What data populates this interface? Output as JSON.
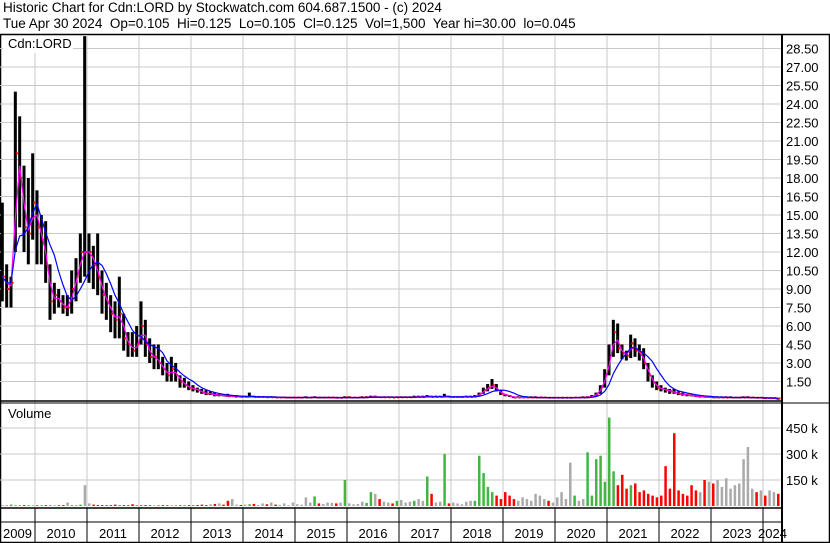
{
  "header": {
    "title": "Historic Chart for Cdn:LORD by Stockwatch.com 604.687.1500 - (c) 2024",
    "quote": "Tue Apr 30 2024  Op=0.105  Hi=0.125  Lo=0.105  Cl=0.125  Vol=1,500  Year hi=30.00  lo=0.045"
  },
  "colors": {
    "bar": "#000000",
    "close": "#ff0000",
    "ma_short": "#ff00ff",
    "ma_long": "#0000ff",
    "vol_up": "#44b444",
    "vol_down": "#ff0000",
    "vol_flat": "#aaaaaa",
    "grid": "#c8c8c8"
  },
  "chart_data": [
    {
      "type": "bar",
      "panel": "price",
      "label": "Cdn:LORD",
      "start_month": "2009-05",
      "ylim": [
        0,
        30
      ],
      "yticks": [
        "1.50",
        "3.00",
        "4.50",
        "6.00",
        "7.50",
        "9.00",
        "10.50",
        "12.00",
        "13.50",
        "15.00",
        "16.50",
        "18.00",
        "19.50",
        "21.00",
        "22.50",
        "24.00",
        "25.50",
        "27.00",
        "28.50"
      ],
      "grid": true,
      "monthly_hi_lo_close": [
        [
          16,
          8,
          10
        ],
        [
          11,
          7.5,
          9
        ],
        [
          10,
          7.5,
          9.5
        ],
        [
          25,
          12,
          20
        ],
        [
          23,
          14,
          18
        ],
        [
          19,
          12,
          14
        ],
        [
          18,
          11,
          13.5
        ],
        [
          20,
          13,
          16
        ],
        [
          17,
          11,
          14
        ],
        [
          15,
          11,
          13
        ],
        [
          14.5,
          9.5,
          11
        ],
        [
          11,
          6.5,
          8
        ],
        [
          9.5,
          7,
          8.5
        ],
        [
          9,
          7.5,
          8
        ],
        [
          8.5,
          7,
          7.5
        ],
        [
          8.5,
          6.8,
          7.5
        ],
        [
          10.5,
          7,
          9
        ],
        [
          11.5,
          8,
          10
        ],
        [
          13.5,
          9.5,
          12
        ],
        [
          29.5,
          10,
          12
        ],
        [
          13.5,
          9.5,
          12
        ],
        [
          12.5,
          9,
          11
        ],
        [
          13.5,
          8.5,
          10
        ],
        [
          10.5,
          7,
          8.5
        ],
        [
          9.5,
          6.5,
          8
        ],
        [
          8.5,
          5.5,
          7
        ],
        [
          8,
          5,
          6.5
        ],
        [
          10,
          5,
          7
        ],
        [
          7,
          4,
          5
        ],
        [
          5.5,
          3.5,
          4.5
        ],
        [
          5.5,
          3.5,
          4
        ],
        [
          6,
          3.5,
          4.5
        ],
        [
          8,
          4.5,
          6
        ],
        [
          6.5,
          3.5,
          4.5
        ],
        [
          5,
          3,
          3.5
        ],
        [
          4.5,
          2.5,
          3.5
        ],
        [
          4.5,
          2.5,
          3
        ],
        [
          3.5,
          2,
          2.5
        ],
        [
          3,
          1.5,
          2
        ],
        [
          3.5,
          1.5,
          2.5
        ],
        [
          3,
          1.5,
          2
        ],
        [
          2,
          1,
          1.5
        ],
        [
          1.8,
          1,
          1.2
        ],
        [
          1.5,
          0.8,
          1
        ],
        [
          1.2,
          0.7,
          0.9
        ],
        [
          1,
          0.6,
          0.8
        ],
        [
          0.9,
          0.5,
          0.6
        ],
        [
          0.8,
          0.4,
          0.5
        ],
        [
          0.7,
          0.4,
          0.5
        ],
        [
          0.6,
          0.3,
          0.4
        ],
        [
          0.5,
          0.3,
          0.4
        ],
        [
          0.5,
          0.3,
          0.35
        ],
        [
          0.5,
          0.25,
          0.3
        ],
        [
          0.4,
          0.25,
          0.3
        ],
        [
          0.4,
          0.2,
          0.3
        ],
        [
          0.35,
          0.2,
          0.25
        ],
        [
          0.35,
          0.2,
          0.25
        ],
        [
          0.6,
          0.2,
          0.3
        ],
        [
          0.35,
          0.2,
          0.25
        ],
        [
          0.3,
          0.2,
          0.25
        ],
        [
          0.3,
          0.2,
          0.25
        ],
        [
          0.3,
          0.18,
          0.22
        ],
        [
          0.3,
          0.18,
          0.22
        ],
        [
          0.3,
          0.18,
          0.2
        ],
        [
          0.28,
          0.15,
          0.2
        ],
        [
          0.28,
          0.15,
          0.2
        ],
        [
          0.25,
          0.15,
          0.2
        ],
        [
          0.25,
          0.15,
          0.2
        ],
        [
          0.25,
          0.15,
          0.2
        ],
        [
          0.25,
          0.15,
          0.2
        ],
        [
          0.3,
          0.15,
          0.2
        ],
        [
          0.25,
          0.15,
          0.2
        ],
        [
          0.3,
          0.15,
          0.22
        ],
        [
          0.25,
          0.15,
          0.2
        ],
        [
          0.25,
          0.15,
          0.2
        ],
        [
          0.25,
          0.15,
          0.2
        ],
        [
          0.25,
          0.15,
          0.2
        ],
        [
          0.25,
          0.12,
          0.18
        ],
        [
          0.25,
          0.12,
          0.18
        ],
        [
          0.3,
          0.15,
          0.2
        ],
        [
          0.3,
          0.15,
          0.2
        ],
        [
          0.25,
          0.15,
          0.2
        ],
        [
          0.25,
          0.15,
          0.2
        ],
        [
          0.3,
          0.15,
          0.2
        ],
        [
          0.3,
          0.15,
          0.22
        ],
        [
          0.35,
          0.18,
          0.25
        ],
        [
          0.35,
          0.2,
          0.25
        ],
        [
          0.3,
          0.18,
          0.22
        ],
        [
          0.3,
          0.18,
          0.22
        ],
        [
          0.3,
          0.18,
          0.22
        ],
        [
          0.3,
          0.18,
          0.2
        ],
        [
          0.3,
          0.18,
          0.22
        ],
        [
          0.3,
          0.18,
          0.22
        ],
        [
          0.3,
          0.18,
          0.22
        ],
        [
          0.3,
          0.18,
          0.22
        ],
        [
          0.35,
          0.2,
          0.25
        ],
        [
          0.35,
          0.2,
          0.25
        ],
        [
          0.35,
          0.2,
          0.25
        ],
        [
          0.4,
          0.2,
          0.3
        ],
        [
          0.35,
          0.2,
          0.25
        ],
        [
          0.35,
          0.2,
          0.25
        ],
        [
          0.35,
          0.2,
          0.25
        ],
        [
          0.5,
          0.2,
          0.3
        ],
        [
          0.35,
          0.2,
          0.25
        ],
        [
          0.3,
          0.2,
          0.25
        ],
        [
          0.3,
          0.2,
          0.25
        ],
        [
          0.3,
          0.2,
          0.25
        ],
        [
          0.35,
          0.2,
          0.25
        ],
        [
          0.35,
          0.2,
          0.25
        ],
        [
          0.4,
          0.2,
          0.3
        ],
        [
          0.6,
          0.3,
          0.5
        ],
        [
          1,
          0.5,
          0.8
        ],
        [
          1.3,
          0.7,
          1.0
        ],
        [
          1.7,
          0.9,
          1.2
        ],
        [
          1.3,
          0.7,
          0.8
        ],
        [
          0.8,
          0.4,
          0.5
        ],
        [
          0.5,
          0.3,
          0.4
        ],
        [
          0.4,
          0.25,
          0.3
        ],
        [
          0.3,
          0.15,
          0.2
        ],
        [
          0.3,
          0.15,
          0.2
        ],
        [
          0.3,
          0.15,
          0.2
        ],
        [
          0.3,
          0.15,
          0.2
        ],
        [
          0.3,
          0.15,
          0.2
        ],
        [
          0.3,
          0.15,
          0.2
        ],
        [
          0.25,
          0.15,
          0.2
        ],
        [
          0.25,
          0.15,
          0.2
        ],
        [
          0.25,
          0.12,
          0.18
        ],
        [
          0.25,
          0.12,
          0.18
        ],
        [
          0.25,
          0.12,
          0.18
        ],
        [
          0.25,
          0.12,
          0.18
        ],
        [
          0.25,
          0.12,
          0.18
        ],
        [
          0.25,
          0.12,
          0.18
        ],
        [
          0.25,
          0.15,
          0.2
        ],
        [
          0.25,
          0.15,
          0.2
        ],
        [
          0.3,
          0.15,
          0.2
        ],
        [
          0.3,
          0.15,
          0.22
        ],
        [
          0.4,
          0.2,
          0.3
        ],
        [
          0.6,
          0.3,
          0.5
        ],
        [
          1.2,
          0.5,
          1.0
        ],
        [
          2.5,
          1.0,
          2.0
        ],
        [
          4.5,
          2.0,
          3.5
        ],
        [
          6.5,
          3.5,
          5.5
        ],
        [
          6.2,
          3.8,
          4.2
        ],
        [
          4.5,
          3.3,
          3.8
        ],
        [
          4,
          3.2,
          3.6
        ],
        [
          5.3,
          3.4,
          4.6
        ],
        [
          5,
          3.5,
          4.0
        ],
        [
          4.5,
          3.2,
          3.8
        ],
        [
          4.2,
          2.5,
          3.0
        ],
        [
          3,
          1.5,
          2.0
        ],
        [
          2,
          1.0,
          1.4
        ],
        [
          1.5,
          0.8,
          1.0
        ],
        [
          1.2,
          0.7,
          0.9
        ],
        [
          1.0,
          0.6,
          0.8
        ],
        [
          0.9,
          0.5,
          0.7
        ],
        [
          0.9,
          0.5,
          0.6
        ],
        [
          0.7,
          0.4,
          0.5
        ],
        [
          0.6,
          0.35,
          0.45
        ],
        [
          0.5,
          0.3,
          0.4
        ],
        [
          0.45,
          0.3,
          0.35
        ],
        [
          0.4,
          0.25,
          0.3
        ],
        [
          0.35,
          0.2,
          0.3
        ],
        [
          0.35,
          0.2,
          0.25
        ],
        [
          0.3,
          0.2,
          0.25
        ],
        [
          0.3,
          0.15,
          0.2
        ],
        [
          0.3,
          0.15,
          0.2
        ],
        [
          0.3,
          0.15,
          0.2
        ],
        [
          0.3,
          0.15,
          0.2
        ],
        [
          0.3,
          0.15,
          0.2
        ],
        [
          0.25,
          0.15,
          0.2
        ],
        [
          0.25,
          0.15,
          0.2
        ],
        [
          0.3,
          0.15,
          0.2
        ],
        [
          0.3,
          0.15,
          0.2
        ],
        [
          0.25,
          0.15,
          0.2
        ],
        [
          0.25,
          0.12,
          0.18
        ],
        [
          0.25,
          0.12,
          0.18
        ],
        [
          0.2,
          0.1,
          0.15
        ],
        [
          0.2,
          0.1,
          0.15
        ],
        [
          0.2,
          0.1,
          0.15
        ],
        [
          0.15,
          0.1,
          0.125
        ]
      ]
    },
    {
      "type": "bar",
      "panel": "volume",
      "label": "Volume",
      "ylim": [
        0,
        560
      ],
      "yticks": [
        "150 k",
        "300 k",
        "450 k"
      ],
      "ytick_values": [
        150,
        300,
        450
      ],
      "monthly_volume_k": [
        5,
        3,
        8,
        4,
        3,
        5,
        3,
        3,
        4,
        3,
        5,
        3,
        3,
        4,
        5,
        20,
        5,
        4,
        8,
        120,
        15,
        8,
        6,
        5,
        4,
        5,
        8,
        6,
        5,
        4,
        10,
        5,
        6,
        5,
        4,
        4,
        3,
        5,
        4,
        3,
        3,
        4,
        3,
        5,
        4,
        6,
        8,
        5,
        10,
        12,
        15,
        8,
        30,
        40,
        8,
        6,
        8,
        10,
        12,
        6,
        15,
        10,
        20,
        8,
        6,
        15,
        5,
        20,
        10,
        8,
        50,
        20,
        55,
        15,
        12,
        20,
        18,
        15,
        20,
        150,
        15,
        10,
        12,
        25,
        18,
        80,
        70,
        40,
        25,
        20,
        15,
        30,
        35,
        20,
        25,
        30,
        40,
        30,
        170,
        70,
        20,
        25,
        300,
        15,
        20,
        15,
        10,
        25,
        30,
        30,
        290,
        190,
        110,
        80,
        60,
        40,
        80,
        60,
        40,
        30,
        50,
        40,
        30,
        70,
        60,
        40,
        30,
        20,
        50,
        80,
        40,
        250,
        60,
        30,
        40,
        310,
        60,
        270,
        290,
        140,
        510,
        200,
        120,
        180,
        100,
        120,
        130,
        80,
        90,
        70,
        60,
        50,
        60,
        230,
        100,
        420,
        90,
        70,
        60,
        120,
        90,
        80,
        150,
        140,
        130,
        150,
        110,
        160,
        100,
        120,
        130,
        270,
        340,
        100,
        80,
        90,
        60,
        90,
        80,
        70
      ]
    }
  ],
  "x_axis": {
    "years": [
      "2009",
      "2010",
      "2011",
      "2012",
      "2013",
      "2014",
      "2015",
      "2016",
      "2017",
      "2018",
      "2019",
      "2020",
      "2021",
      "2022",
      "2023",
      "2024"
    ]
  }
}
